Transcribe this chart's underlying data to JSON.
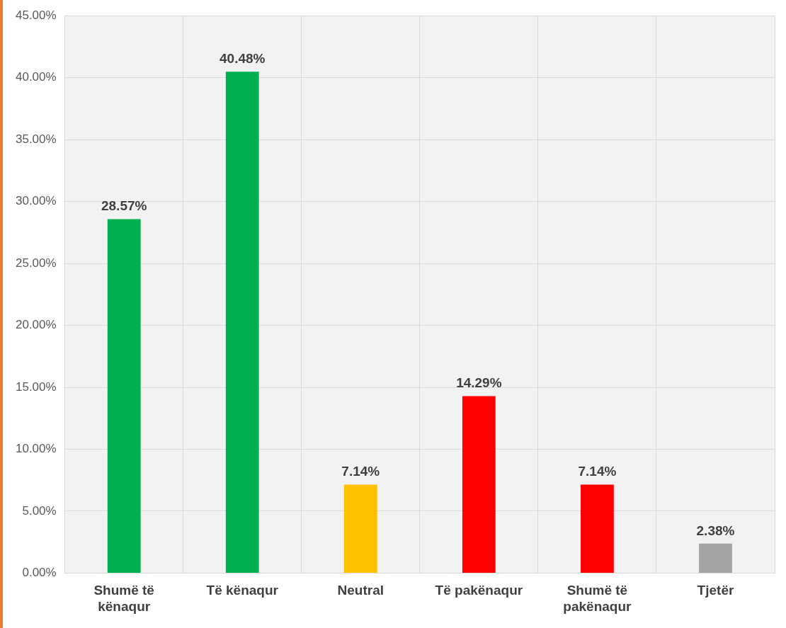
{
  "chart_data": {
    "type": "bar",
    "categories": [
      "Shumë të kënaqur",
      "Të kënaqur",
      "Neutral",
      "Të pakënaqur",
      "Shumë të pakënaqur",
      "Tjetër"
    ],
    "values": [
      28.57,
      40.48,
      7.14,
      14.29,
      7.14,
      2.38
    ],
    "colors": [
      "#00b050",
      "#00b050",
      "#ffc000",
      "#ff0000",
      "#ff0000",
      "#a5a5a5"
    ],
    "value_labels": [
      "28.57%",
      "40.48%",
      "7.14%",
      "14.29%",
      "7.14%",
      "2.38%"
    ],
    "ylim": [
      0,
      45
    ],
    "yticks": [
      {
        "value": 0,
        "label": "0.00%"
      },
      {
        "value": 5,
        "label": "5.00%"
      },
      {
        "value": 10,
        "label": "10.00%"
      },
      {
        "value": 15,
        "label": "15.00%"
      },
      {
        "value": 20,
        "label": "20.00%"
      },
      {
        "value": 25,
        "label": "25.00%"
      },
      {
        "value": 30,
        "label": "30.00%"
      },
      {
        "value": 35,
        "label": "35.00%"
      },
      {
        "value": 40,
        "label": "40.00%"
      },
      {
        "value": 45,
        "label": "45.00%"
      }
    ],
    "grid": true,
    "legend": false
  }
}
